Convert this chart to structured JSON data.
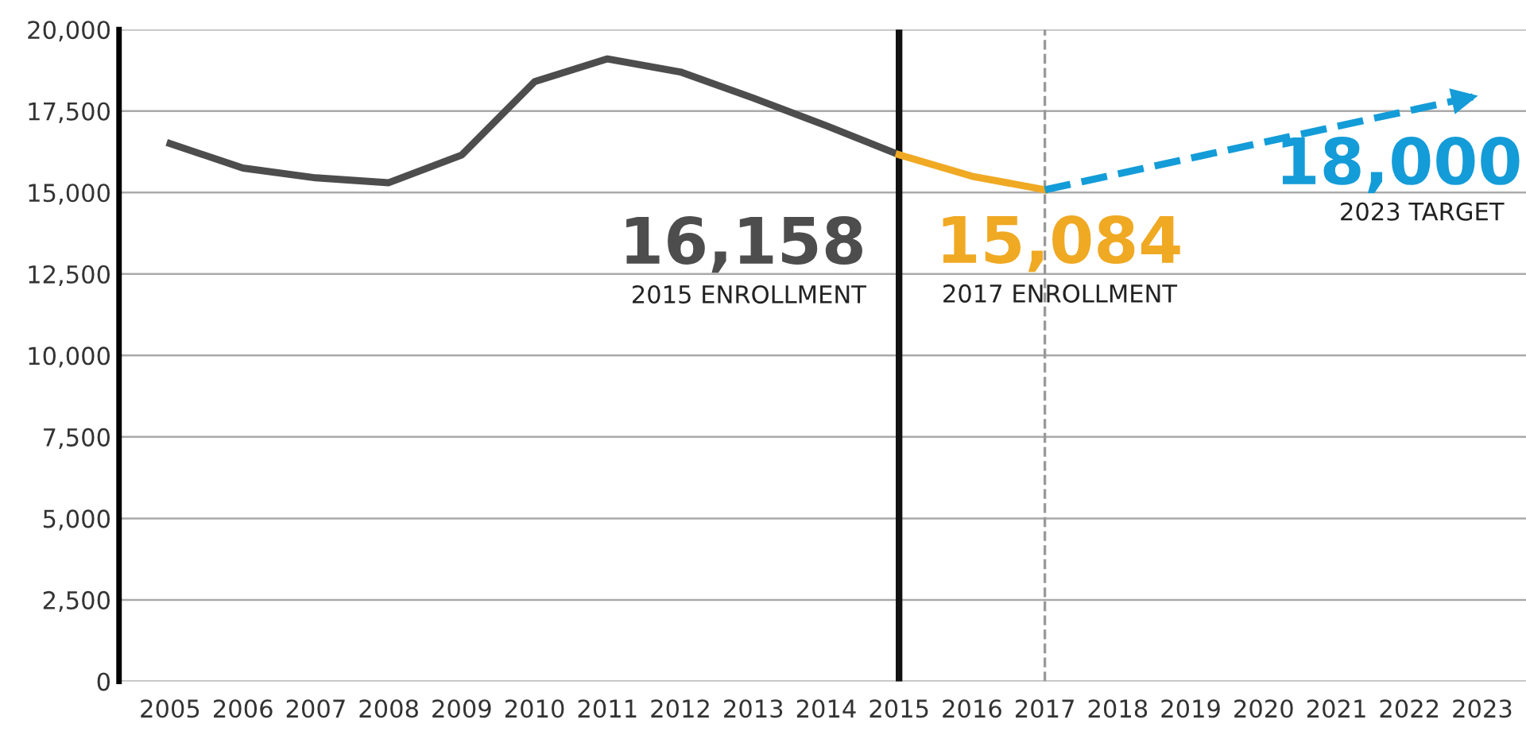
{
  "chart_data": {
    "type": "line",
    "xlim": [
      2004.3,
      2023.6
    ],
    "xticks": [
      2005,
      2006,
      2007,
      2008,
      2009,
      2010,
      2011,
      2012,
      2013,
      2014,
      2015,
      2016,
      2017,
      2018,
      2019,
      2020,
      2021,
      2022,
      2023
    ],
    "ylim": [
      0,
      20000
    ],
    "yticks": [
      {
        "value": 0,
        "label": "0"
      },
      {
        "value": 2500,
        "label": "2,500"
      },
      {
        "value": 5000,
        "label": "5,000"
      },
      {
        "value": 7500,
        "label": "7,500"
      },
      {
        "value": 10000,
        "label": "10,000"
      },
      {
        "value": 12500,
        "label": "12,500"
      },
      {
        "value": 15000,
        "label": "15,000"
      },
      {
        "value": 17500,
        "label": "17,500"
      },
      {
        "value": 20000,
        "label": "20,000"
      }
    ],
    "grid": "y",
    "marker": "none",
    "series": [
      {
        "color": "#4d4d4d",
        "line_style": "solid",
        "x": [
          2005,
          2006,
          2007,
          2008,
          2009,
          2010,
          2011,
          2012,
          2013,
          2014,
          2015
        ],
        "values": [
          16500,
          15750,
          15450,
          15300,
          16150,
          18400,
          19100,
          18700,
          17900,
          17050,
          16158
        ]
      },
      {
        "color": "#f0a923",
        "line_style": "solid",
        "x": [
          2015,
          2016,
          2017
        ],
        "values": [
          16158,
          15500,
          15084
        ]
      },
      {
        "color": "#139cd8",
        "line_style": "dashed",
        "x": [
          2017,
          2023
        ],
        "values": [
          15084,
          18000
        ]
      }
    ],
    "ref_lines": [
      {
        "axis": "x",
        "value": 2015,
        "color": "#111111",
        "line_style": "solid"
      },
      {
        "axis": "x",
        "value": 2017,
        "color": "#999999",
        "line_style": "dashed"
      }
    ],
    "annotations": [
      {
        "text": "16,158",
        "x": 2015,
        "y": 16158
      },
      "2015 ENROLLMENT",
      {
        "text": "15,084",
        "x": 2017,
        "y": 15084
      },
      "2017 ENROLLMENT",
      {
        "text": "18,000",
        "x": 2023,
        "y": 18000
      },
      "2023 TARGET"
    ]
  }
}
